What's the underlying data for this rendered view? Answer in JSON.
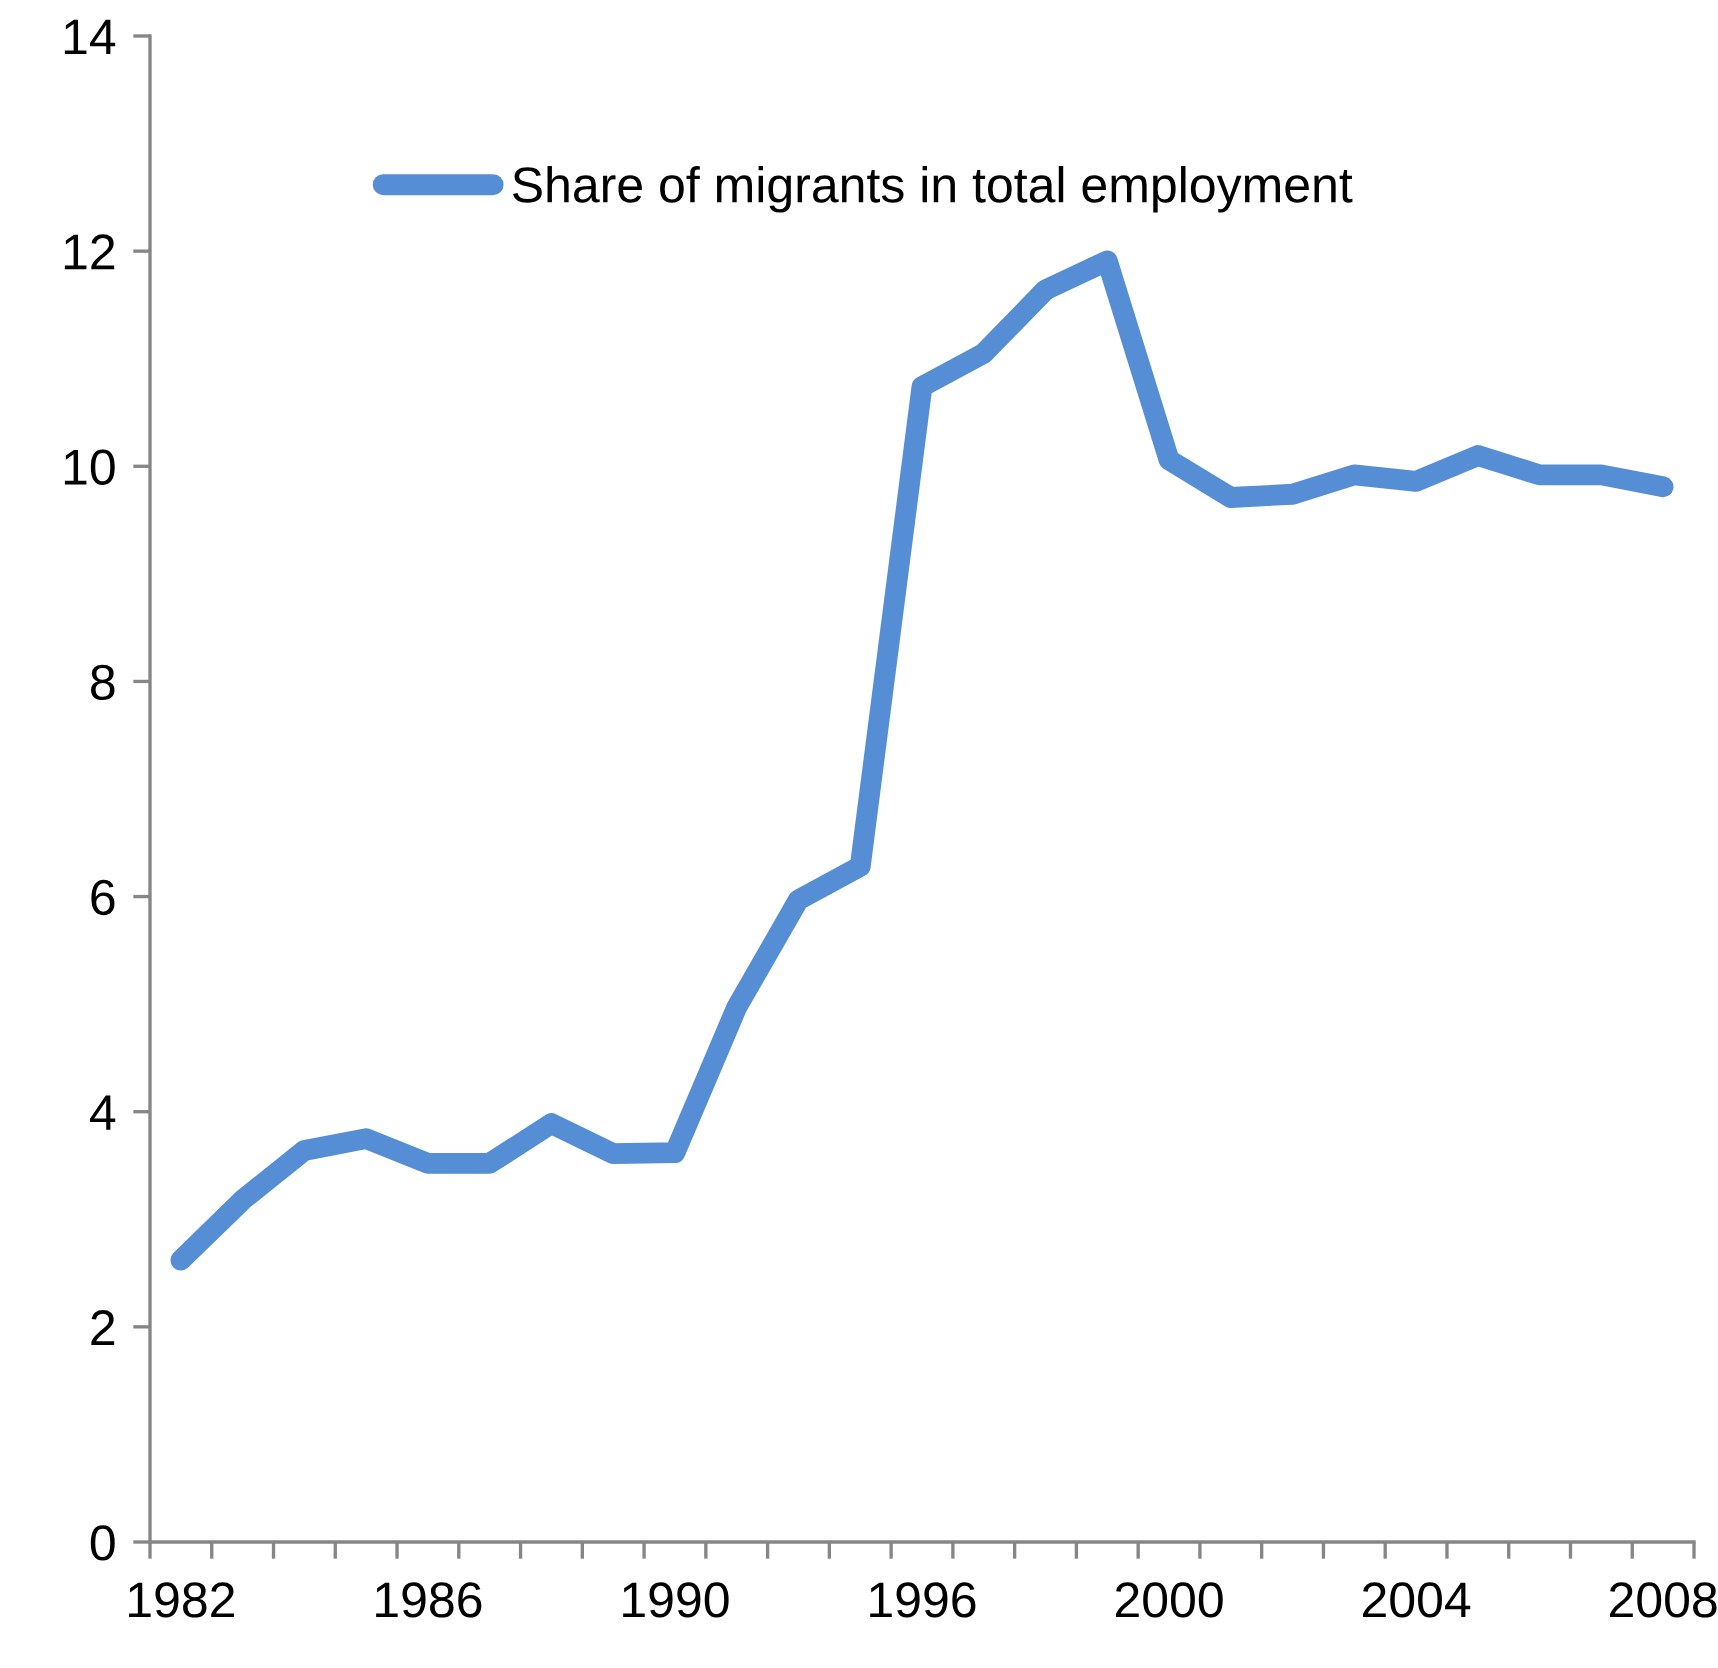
{
  "chart_data": {
    "type": "line",
    "categories": [
      "1982",
      null,
      null,
      null,
      "1986",
      null,
      null,
      null,
      "1990",
      null,
      null,
      null,
      "1996",
      null,
      null,
      null,
      "2000",
      null,
      null,
      null,
      "2004",
      null,
      null,
      null,
      "2008"
    ],
    "series": [
      {
        "name": "Share of migrants in total employment",
        "color": "#558ed5",
        "values": [
          2.62,
          3.18,
          3.64,
          3.75,
          3.52,
          3.52,
          3.89,
          3.61,
          3.62,
          4.97,
          5.97,
          6.28,
          10.74,
          11.05,
          11.64,
          11.91,
          10.06,
          9.71,
          9.74,
          9.92,
          9.86,
          10.1,
          9.92,
          9.92,
          9.81
        ]
      }
    ],
    "ylim": [
      0,
      14
    ],
    "yticks": [
      0,
      2,
      4,
      6,
      8,
      10,
      12,
      14
    ],
    "grid": false,
    "legend": "top",
    "marker": "none",
    "line_style": "solid"
  }
}
